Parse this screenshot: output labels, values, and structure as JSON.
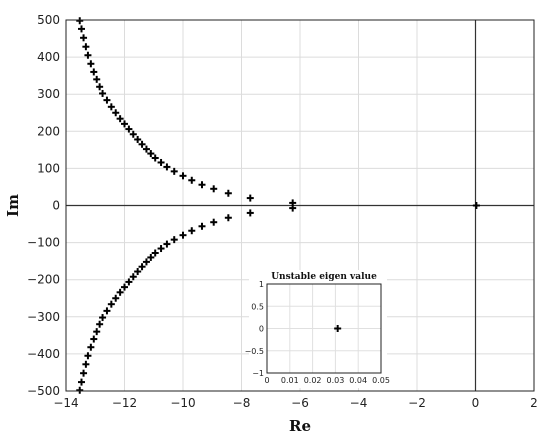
{
  "chart_data": [
    {
      "type": "scatter",
      "xlabel": "Re",
      "ylabel": "Im",
      "xlim": [
        -14,
        2
      ],
      "ylim": [
        -500,
        500
      ],
      "xticks": [
        "−14",
        "−12",
        "−10",
        "−8",
        "−6",
        "−4",
        "−2",
        "0",
        "2"
      ],
      "yticks": [
        "−500",
        "−400",
        "−300",
        "−200",
        "−100",
        "0",
        "100",
        "200",
        "300",
        "400",
        "500"
      ],
      "grid": true,
      "marker": "plus",
      "marker_color": "#000000",
      "series": [
        {
          "points": [
            [
              -6.25,
              7
            ],
            [
              -7.7,
              20
            ],
            [
              -8.45,
              33
            ],
            [
              -8.95,
              45
            ],
            [
              -9.35,
              56
            ],
            [
              -9.7,
              68
            ],
            [
              -10.0,
              80
            ],
            [
              -10.3,
              92
            ],
            [
              -10.55,
              104
            ],
            [
              -10.75,
              116
            ],
            [
              -10.95,
              128
            ],
            [
              -11.1,
              140
            ],
            [
              -11.25,
              152
            ],
            [
              -11.4,
              165
            ],
            [
              -11.55,
              178
            ],
            [
              -11.7,
              192
            ],
            [
              -11.85,
              206
            ],
            [
              -12.0,
              220
            ],
            [
              -12.15,
              234
            ],
            [
              -12.3,
              250
            ],
            [
              -12.45,
              266
            ],
            [
              -12.6,
              284
            ],
            [
              -12.75,
              302
            ],
            [
              -12.85,
              320
            ],
            [
              -12.95,
              340
            ],
            [
              -13.05,
              360
            ],
            [
              -13.15,
              382
            ],
            [
              -13.25,
              405
            ],
            [
              -13.32,
              428
            ],
            [
              -13.4,
              452
            ],
            [
              -13.47,
              476
            ],
            [
              -13.53,
              498
            ],
            [
              -6.25,
              -7
            ],
            [
              -7.7,
              -20
            ],
            [
              -8.45,
              -33
            ],
            [
              -8.95,
              -45
            ],
            [
              -9.35,
              -56
            ],
            [
              -9.7,
              -68
            ],
            [
              -10.0,
              -80
            ],
            [
              -10.3,
              -92
            ],
            [
              -10.55,
              -104
            ],
            [
              -10.75,
              -116
            ],
            [
              -10.95,
              -128
            ],
            [
              -11.1,
              -140
            ],
            [
              -11.25,
              -152
            ],
            [
              -11.4,
              -165
            ],
            [
              -11.55,
              -178
            ],
            [
              -11.7,
              -192
            ],
            [
              -11.85,
              -206
            ],
            [
              -12.0,
              -220
            ],
            [
              -12.15,
              -234
            ],
            [
              -12.3,
              -250
            ],
            [
              -12.45,
              -266
            ],
            [
              -12.6,
              -284
            ],
            [
              -12.75,
              -302
            ],
            [
              -12.85,
              -320
            ],
            [
              -12.95,
              -340
            ],
            [
              -13.05,
              -360
            ],
            [
              -13.15,
              -382
            ],
            [
              -13.25,
              -405
            ],
            [
              -13.32,
              -428
            ],
            [
              -13.4,
              -452
            ],
            [
              -13.47,
              -476
            ],
            [
              -13.53,
              -498
            ],
            [
              0.03,
              0
            ]
          ]
        }
      ]
    },
    {
      "type": "scatter",
      "title": "Unstable eigen value",
      "xlim": [
        0,
        0.05
      ],
      "ylim": [
        -1,
        1
      ],
      "xticks": [
        "0",
        "0.01",
        "0.02",
        "0.03",
        "0.04",
        "0.05"
      ],
      "yticks": [
        "−1",
        "−0.5",
        "0",
        "0.5",
        "1"
      ],
      "grid": true,
      "marker": "plus",
      "series": [
        {
          "points": [
            [
              0.031,
              0
            ]
          ]
        }
      ]
    }
  ]
}
